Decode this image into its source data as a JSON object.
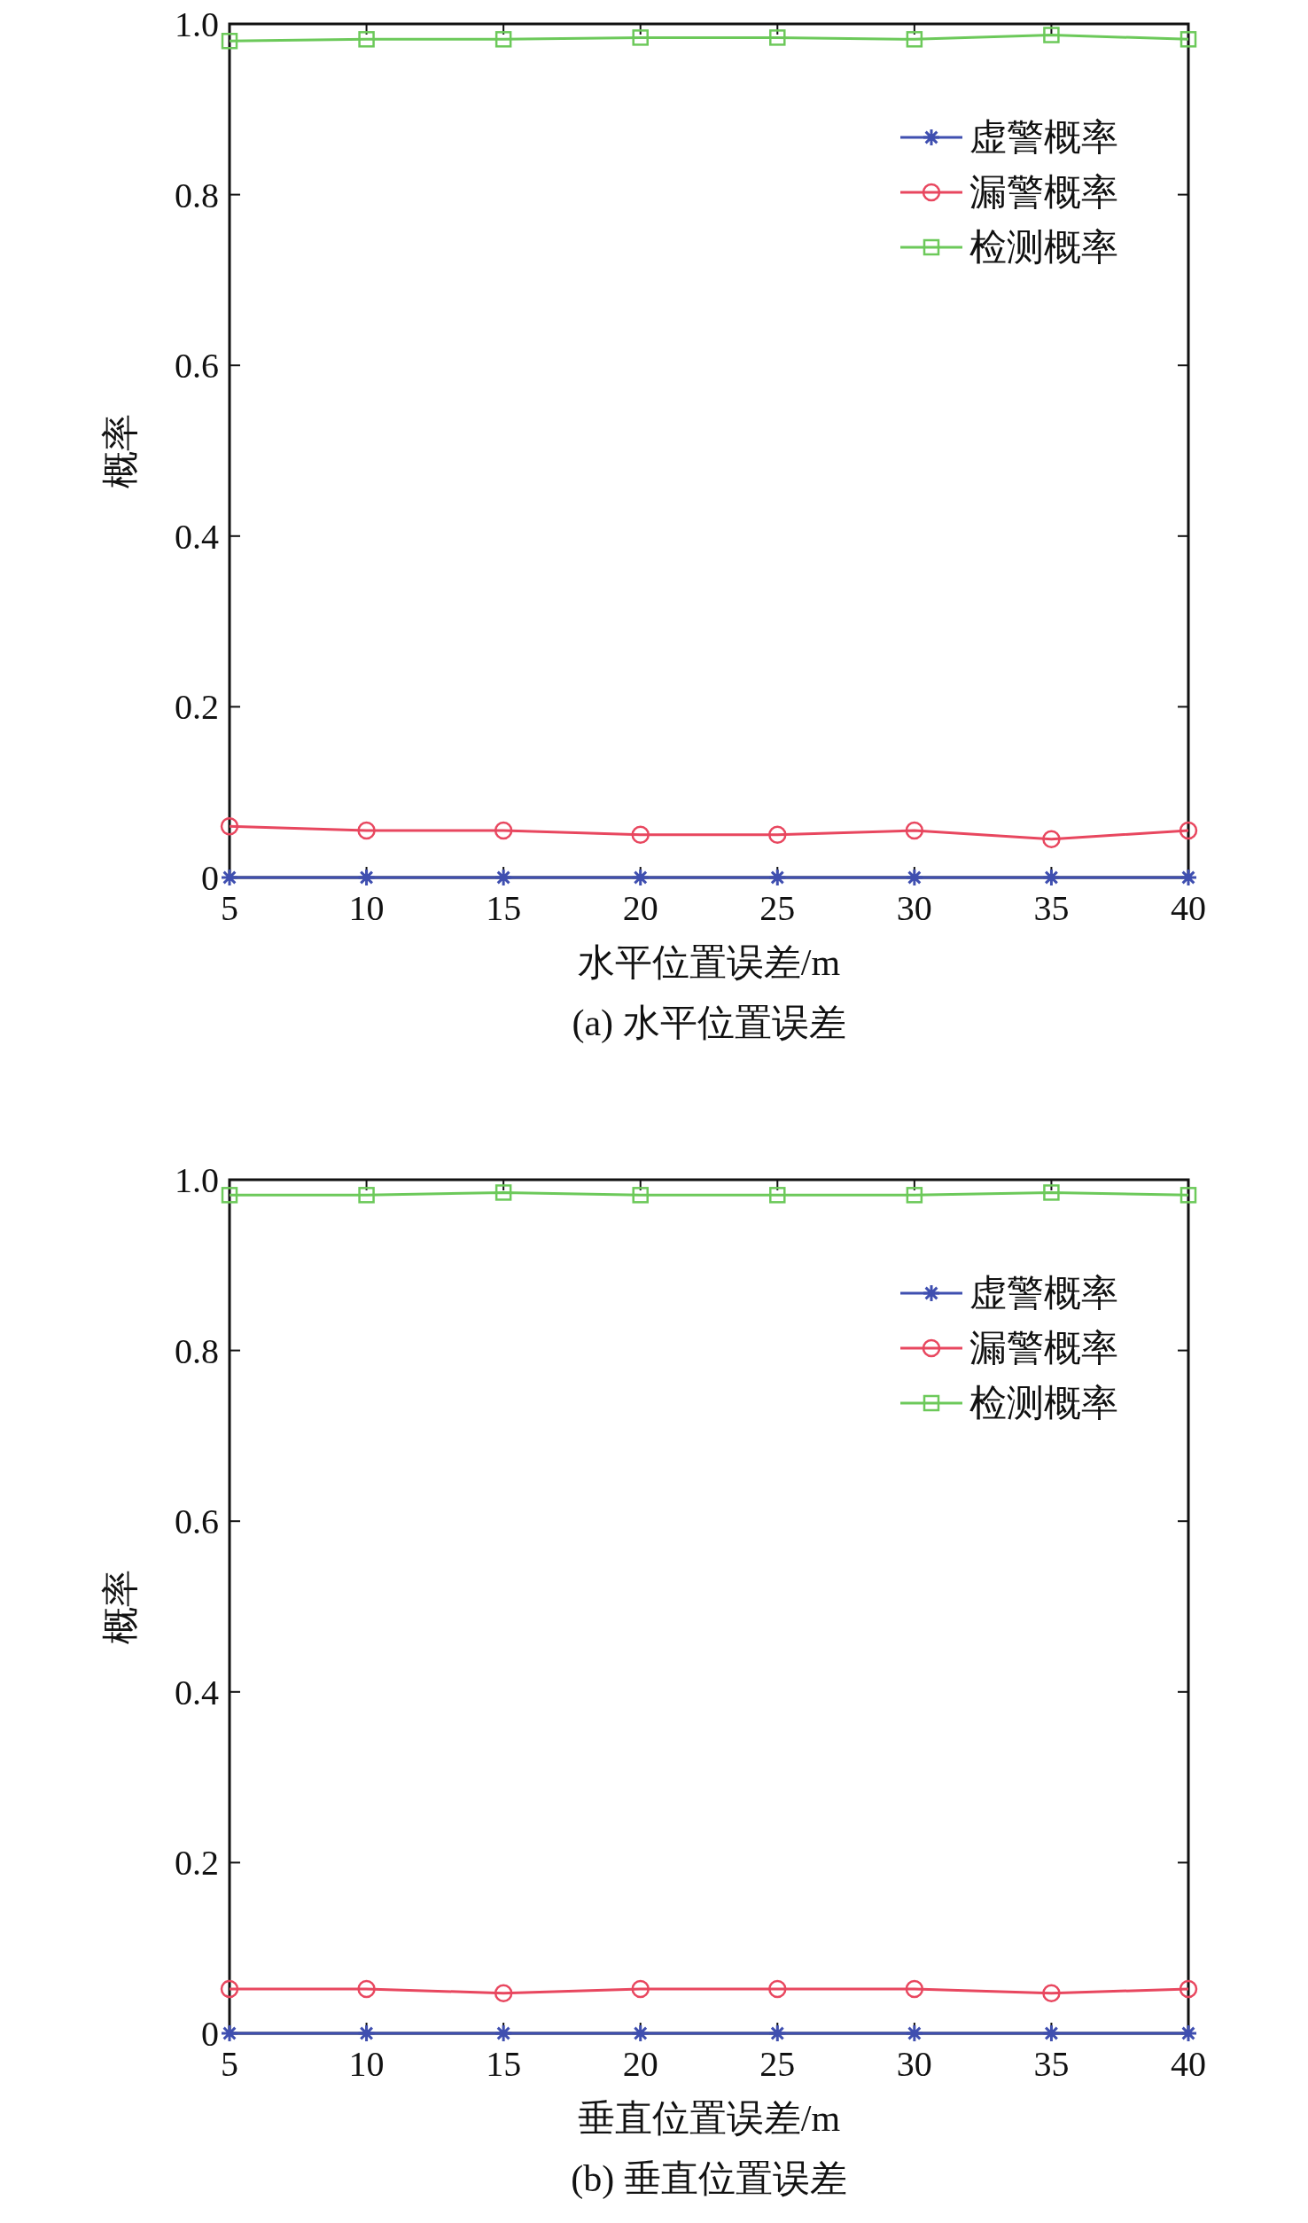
{
  "chart_data": [
    {
      "type": "line",
      "title": "(a) 水平位置误差",
      "xlabel": "水平位置误差/m",
      "ylabel": "概率",
      "x": [
        5,
        10,
        15,
        20,
        25,
        30,
        35,
        40
      ],
      "xlim": [
        5,
        40
      ],
      "xticks": [
        5,
        10,
        15,
        20,
        25,
        30,
        35,
        40
      ],
      "ylim": [
        0,
        1
      ],
      "yticks": [
        0,
        0.2,
        0.4,
        0.6,
        0.8,
        {
          "value": 1,
          "label": "1.0"
        }
      ],
      "grid": false,
      "legend": "top right",
      "series": [
        {
          "name": "虚警概率",
          "color": "#3f4fb0",
          "marker": "cross",
          "values": [
            0,
            0,
            0,
            0,
            0,
            0,
            0,
            0
          ]
        },
        {
          "name": "漏警概率",
          "color": "#e8475f",
          "marker": "circle",
          "values": [
            0.06,
            0.055,
            0.055,
            0.05,
            0.05,
            0.055,
            0.045,
            0.055
          ]
        },
        {
          "name": "检测概率",
          "color": "#6cc95a",
          "marker": "square",
          "values": [
            0.98,
            0.982,
            0.982,
            0.984,
            0.984,
            0.982,
            0.987,
            0.982
          ]
        }
      ]
    },
    {
      "type": "line",
      "title": "(b) 垂直位置误差",
      "xlabel": "垂直位置误差/m",
      "ylabel": "概率",
      "x": [
        5,
        10,
        15,
        20,
        25,
        30,
        35,
        40
      ],
      "xlim": [
        5,
        40
      ],
      "xticks": [
        5,
        10,
        15,
        20,
        25,
        30,
        35,
        40
      ],
      "ylim": [
        0,
        1
      ],
      "yticks": [
        0,
        0.2,
        0.4,
        0.6,
        0.8,
        {
          "value": 1,
          "label": "1.0"
        }
      ],
      "grid": false,
      "legend": "top right",
      "series": [
        {
          "name": "虚警概率",
          "color": "#3f4fb0",
          "marker": "cross",
          "values": [
            0,
            0,
            0,
            0,
            0,
            0,
            0,
            0
          ]
        },
        {
          "name": "漏警概率",
          "color": "#e8475f",
          "marker": "circle",
          "values": [
            0.052,
            0.052,
            0.047,
            0.052,
            0.052,
            0.052,
            0.047,
            0.052
          ]
        },
        {
          "name": "检测概率",
          "color": "#6cc95a",
          "marker": "square",
          "values": [
            0.982,
            0.982,
            0.985,
            0.982,
            0.982,
            0.982,
            0.985,
            0.982
          ]
        }
      ]
    }
  ]
}
